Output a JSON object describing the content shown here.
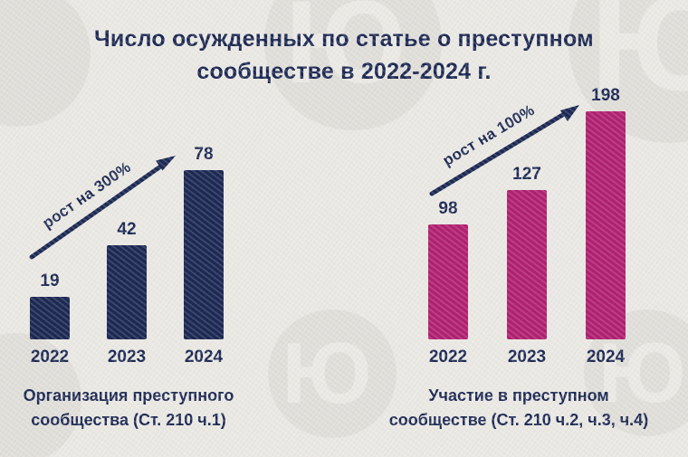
{
  "title": "Число осужденных по статье о преступном сообществе в 2022-2024 г.",
  "title_lines": [
    "Число осужденных по статье о преступном",
    "сообществе в 2022-2024 г."
  ],
  "watermark_glyph": "Ю",
  "colors": {
    "navy": "#1b2853",
    "magenta": "#b01f70",
    "background": "#eae8e3",
    "watermark": "#e0ded9",
    "text": "#1b2853"
  },
  "chart_data": [
    {
      "type": "bar",
      "title": "Организация преступного сообщества (Ст. 210 ч.1)",
      "title_lines": [
        "Организация преступного",
        "сообщества (Ст. 210 ч.1)"
      ],
      "categories": [
        "2022",
        "2023",
        "2024"
      ],
      "values": [
        19,
        42,
        78
      ],
      "growth_label": "рост на 300%",
      "bar_color": "#1b2853",
      "ylim": [
        0,
        85
      ],
      "grid": false,
      "legend": false
    },
    {
      "type": "bar",
      "title": "Участие в преступном сообществе (Ст. 210 ч.2, ч.3, ч.4)",
      "title_lines": [
        "Участие в преступном",
        "сообществе (Ст. 210 ч.2, ч.3, ч.4)"
      ],
      "categories": [
        "2022",
        "2023",
        "2024"
      ],
      "values": [
        98,
        127,
        198
      ],
      "growth_label": "рост на 100%",
      "bar_color": "#b01f70",
      "ylim": [
        0,
        215
      ],
      "grid": false,
      "legend": false
    }
  ]
}
